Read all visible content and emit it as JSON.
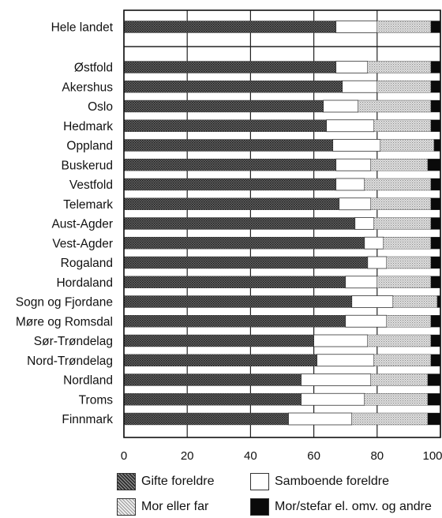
{
  "chart_data": {
    "type": "bar",
    "orientation": "horizontal",
    "stacked": true,
    "categories": [
      "Hele landet",
      "Østfold",
      "Akershus",
      "Oslo",
      "Hedmark",
      "Oppland",
      "Buskerud",
      "Vestfold",
      "Telemark",
      "Aust-Agder",
      "Vest-Agder",
      "Rogaland",
      "Hordaland",
      "Sogn og Fjordane",
      "Møre og Romsdal",
      "Sør-Trøndelag",
      "Nord-Trøndelag",
      "Nordland",
      "Troms",
      "Finnmark"
    ],
    "gap_after_first": true,
    "series": [
      {
        "name": "Gifte foreldre",
        "color": "#4a4a4a",
        "pattern": "dense-dots",
        "values": [
          67,
          67,
          69,
          63,
          64,
          66,
          67,
          67,
          68,
          73,
          76,
          77,
          70,
          72,
          70,
          60,
          61,
          56,
          56,
          52
        ]
      },
      {
        "name": "Samboende foreldre",
        "color": "#ffffff",
        "pattern": "none",
        "values": [
          13,
          10,
          11,
          11,
          15,
          15,
          11,
          9,
          10,
          6,
          6,
          6,
          10,
          13,
          13,
          17,
          18,
          22,
          20,
          20
        ]
      },
      {
        "name": "Mor eller far",
        "color": "#c8c8c8",
        "pattern": "light-dots",
        "values": [
          17,
          20,
          17,
          23,
          18,
          17,
          18,
          21,
          19,
          18,
          15,
          14,
          17,
          14,
          14,
          20,
          18,
          18,
          20,
          24
        ]
      },
      {
        "name": "Mor/stefar el. omv. og andre",
        "color": "#0a0a0a",
        "pattern": "solid",
        "values": [
          3,
          3,
          3,
          3,
          3,
          2,
          4,
          3,
          3,
          3,
          3,
          3,
          3,
          1,
          3,
          3,
          3,
          4,
          4,
          4
        ]
      }
    ],
    "xlim": [
      0,
      100
    ],
    "xticks": [
      "0",
      "20",
      "40",
      "60",
      "80",
      "100"
    ],
    "grid": true,
    "legend_position": "bottom"
  }
}
